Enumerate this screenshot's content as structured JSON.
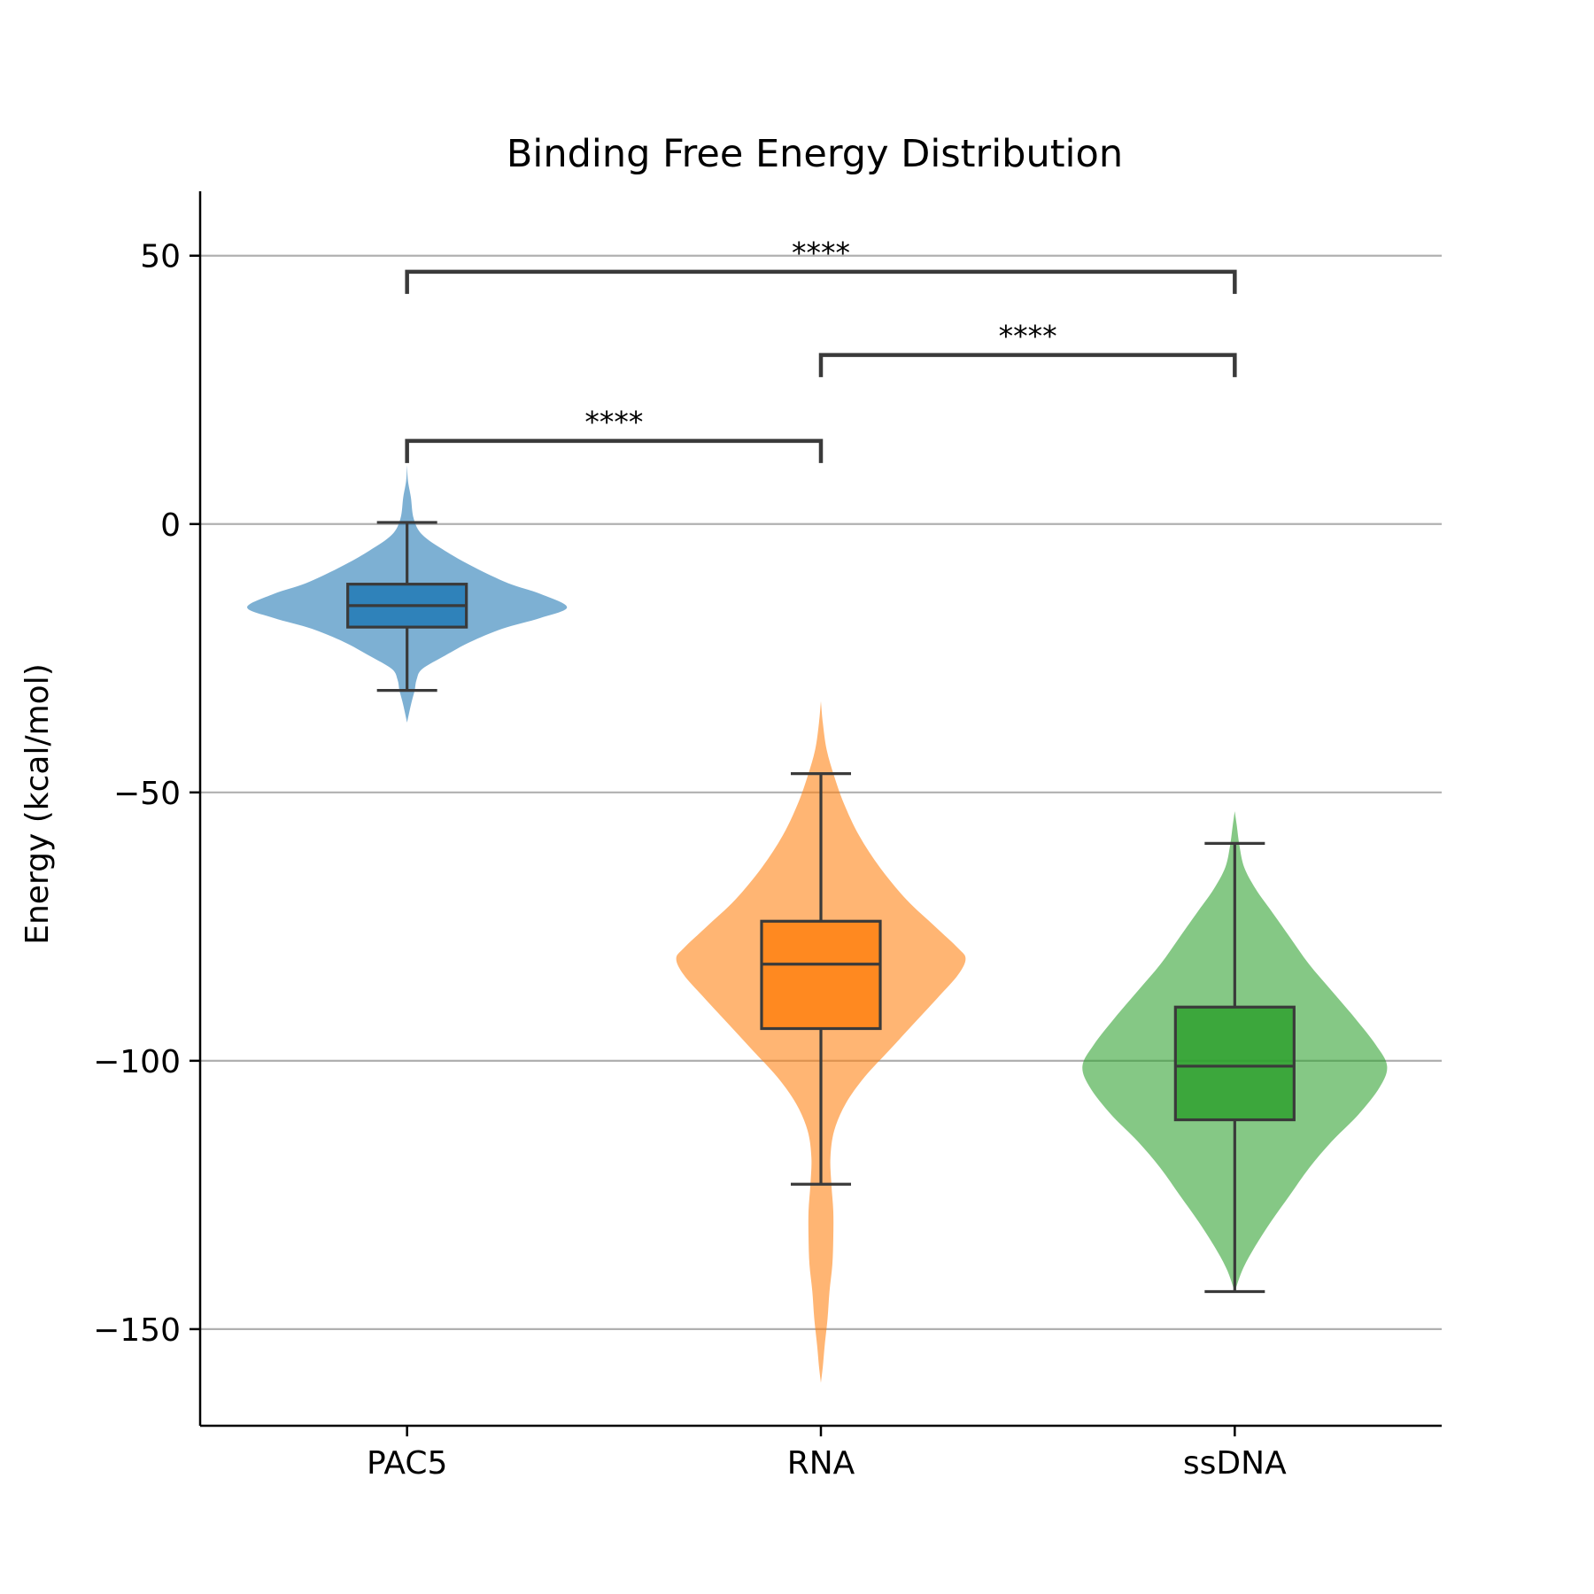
{
  "chart_data": {
    "type": "violin",
    "title": "Binding Free Energy Distribution",
    "xlabel": "",
    "ylabel": "Energy (kcal/mol)",
    "categories": [
      "PAC5",
      "RNA",
      "ssDNA"
    ],
    "ylim": [
      -168,
      62
    ],
    "yticks": [
      50,
      0,
      -50,
      -100,
      -150
    ],
    "ytick_labels": [
      "50",
      "0",
      "−50",
      "−100",
      "−150"
    ],
    "grid": "horizontal",
    "colors": {
      "PAC5": "#1f77b4",
      "RNA": "#ff7f0e",
      "ssDNA": "#2ca02c",
      "box_edge": "#3a3a3a",
      "grid": "#b0b0b0"
    },
    "series": [
      {
        "category": "PAC5",
        "box": {
          "whisker_low": -31,
          "q1": -19.2,
          "median": -15.2,
          "q3": -11.2,
          "whisker_high": 0.3
        },
        "violin_extent": [
          -37,
          11
        ],
        "density": [
          [
            11,
            0.0
          ],
          [
            8,
            0.005
          ],
          [
            5,
            0.02
          ],
          [
            1,
            0.035
          ],
          [
            -2,
            0.08
          ],
          [
            -5,
            0.2
          ],
          [
            -8,
            0.35
          ],
          [
            -11,
            0.53
          ],
          [
            -13,
            0.7
          ],
          [
            -15.5,
            0.84
          ],
          [
            -17.5,
            0.7
          ],
          [
            -19.5,
            0.5
          ],
          [
            -22,
            0.33
          ],
          [
            -24.5,
            0.2
          ],
          [
            -27,
            0.08
          ],
          [
            -29,
            0.05
          ],
          [
            -31,
            0.04
          ],
          [
            -33,
            0.025
          ],
          [
            -35,
            0.012
          ],
          [
            -37,
            0.0
          ]
        ]
      },
      {
        "category": "RNA",
        "box": {
          "whisker_low": -123,
          "q1": -94,
          "median": -82,
          "q3": -74,
          "whisker_high": -46.5
        },
        "violin_extent": [
          -160,
          -33
        ],
        "density": [
          [
            -33,
            0.0
          ],
          [
            -37,
            0.01
          ],
          [
            -42,
            0.03
          ],
          [
            -47,
            0.07
          ],
          [
            -52,
            0.12
          ],
          [
            -58,
            0.2
          ],
          [
            -64,
            0.31
          ],
          [
            -70,
            0.45
          ],
          [
            -75,
            0.6
          ],
          [
            -79,
            0.72
          ],
          [
            -81,
            0.76
          ],
          [
            -84,
            0.72
          ],
          [
            -88,
            0.62
          ],
          [
            -93,
            0.49
          ],
          [
            -98,
            0.36
          ],
          [
            -103,
            0.23
          ],
          [
            -108,
            0.13
          ],
          [
            -113,
            0.07
          ],
          [
            -118,
            0.05
          ],
          [
            -123,
            0.055
          ],
          [
            -128,
            0.065
          ],
          [
            -133,
            0.065
          ],
          [
            -138,
            0.06
          ],
          [
            -143,
            0.045
          ],
          [
            -148,
            0.035
          ],
          [
            -153,
            0.02
          ],
          [
            -157,
            0.01
          ],
          [
            -160,
            0.0
          ]
        ]
      },
      {
        "category": "ssDNA",
        "box": {
          "whisker_low": -143,
          "q1": -111,
          "median": -101,
          "q3": -90,
          "whisker_high": -59.5
        },
        "violin_extent": [
          -143,
          -53.5
        ],
        "density": [
          [
            -53.5,
            0.0
          ],
          [
            -56,
            0.01
          ],
          [
            -60,
            0.025
          ],
          [
            -64,
            0.05
          ],
          [
            -68,
            0.11
          ],
          [
            -72,
            0.19
          ],
          [
            -77,
            0.29
          ],
          [
            -82,
            0.39
          ],
          [
            -87,
            0.51
          ],
          [
            -92,
            0.63
          ],
          [
            -97,
            0.74
          ],
          [
            -101,
            0.8
          ],
          [
            -105,
            0.76
          ],
          [
            -110,
            0.65
          ],
          [
            -115,
            0.51
          ],
          [
            -120,
            0.39
          ],
          [
            -125,
            0.29
          ],
          [
            -130,
            0.19
          ],
          [
            -135,
            0.1
          ],
          [
            -139,
            0.04
          ],
          [
            -143,
            0.0
          ]
        ]
      }
    ],
    "significance": [
      {
        "from": "PAC5",
        "to": "RNA",
        "y": 15.5,
        "label": "****"
      },
      {
        "from": "RNA",
        "to": "ssDNA",
        "y": 31.5,
        "label": "****"
      },
      {
        "from": "PAC5",
        "to": "ssDNA",
        "y": 47,
        "label": "****"
      }
    ]
  }
}
